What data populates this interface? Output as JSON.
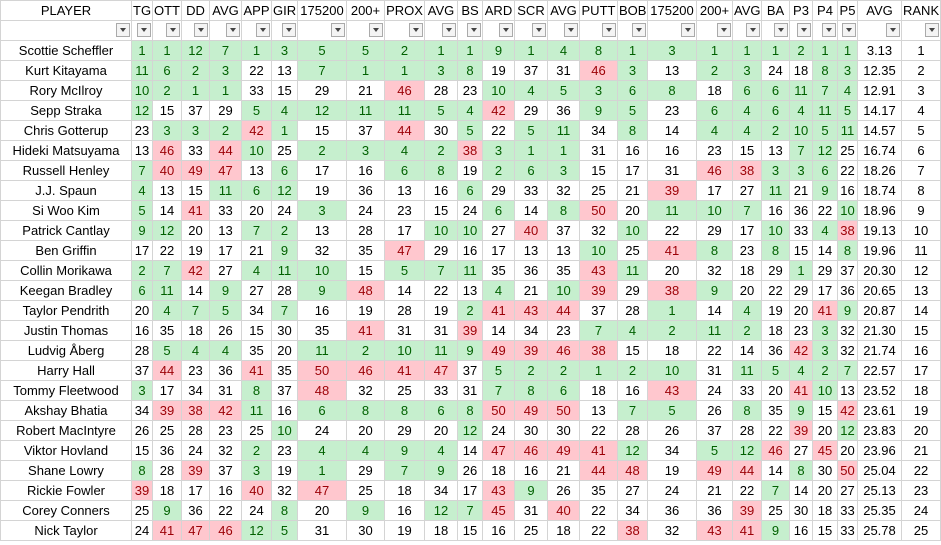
{
  "table": {
    "header": [
      "PLAYER",
      "TG",
      "OTT",
      "DD",
      "AVG",
      "APP",
      "GIR",
      "175200",
      "200+",
      "PROX",
      "AVG",
      "BS",
      "ARD",
      "SCR",
      "AVG",
      "PUTT",
      "BOB",
      "175200",
      "200+",
      "AVG",
      "BA",
      "P3",
      "P4",
      "P5",
      "AVG",
      "RANK"
    ],
    "rows": [
      [
        "Scottie Scheffler",
        1,
        1,
        12,
        7,
        1,
        3,
        5,
        5,
        2,
        1,
        1,
        9,
        1,
        4,
        8,
        1,
        3,
        1,
        1,
        1,
        2,
        1,
        1,
        "3.13",
        1
      ],
      [
        "Kurt Kitayama",
        11,
        6,
        2,
        3,
        22,
        13,
        7,
        1,
        1,
        3,
        8,
        19,
        37,
        31,
        46,
        3,
        13,
        2,
        3,
        24,
        18,
        8,
        3,
        "12.35",
        2
      ],
      [
        "Rory McIlroy",
        10,
        2,
        1,
        1,
        33,
        15,
        29,
        21,
        46,
        28,
        23,
        10,
        4,
        5,
        3,
        6,
        8,
        18,
        6,
        6,
        11,
        7,
        4,
        "12.91",
        3
      ],
      [
        "Sepp Straka",
        12,
        15,
        37,
        29,
        5,
        4,
        12,
        11,
        11,
        5,
        4,
        42,
        29,
        36,
        9,
        5,
        23,
        6,
        4,
        6,
        4,
        11,
        5,
        "14.17",
        4
      ],
      [
        "Chris Gotterup",
        23,
        3,
        3,
        2,
        42,
        1,
        15,
        37,
        44,
        30,
        5,
        22,
        5,
        11,
        34,
        8,
        14,
        4,
        4,
        2,
        10,
        5,
        11,
        "14.57",
        5
      ],
      [
        "Hideki Matsuyama",
        13,
        46,
        33,
        44,
        10,
        25,
        2,
        3,
        4,
        2,
        38,
        3,
        1,
        1,
        31,
        16,
        16,
        23,
        15,
        13,
        7,
        12,
        25,
        "16.74",
        6
      ],
      [
        "Russell Henley",
        7,
        40,
        49,
        47,
        13,
        6,
        17,
        16,
        6,
        8,
        19,
        2,
        6,
        3,
        15,
        17,
        31,
        46,
        38,
        3,
        3,
        6,
        22,
        "18.26",
        7
      ],
      [
        "J.J. Spaun",
        4,
        13,
        15,
        11,
        6,
        12,
        19,
        36,
        13,
        16,
        6,
        29,
        33,
        32,
        25,
        21,
        39,
        17,
        27,
        11,
        21,
        9,
        16,
        "18.74",
        8
      ],
      [
        "Si Woo Kim",
        5,
        14,
        41,
        33,
        20,
        24,
        3,
        24,
        23,
        15,
        24,
        6,
        14,
        8,
        50,
        20,
        11,
        10,
        7,
        16,
        36,
        22,
        10,
        "18.96",
        9
      ],
      [
        "Patrick Cantlay",
        9,
        12,
        20,
        13,
        7,
        2,
        13,
        28,
        17,
        10,
        10,
        27,
        40,
        37,
        32,
        10,
        22,
        29,
        17,
        10,
        33,
        4,
        38,
        "19.13",
        10
      ],
      [
        "Ben Griffin",
        17,
        22,
        19,
        17,
        21,
        9,
        32,
        35,
        47,
        29,
        16,
        17,
        13,
        13,
        10,
        25,
        41,
        8,
        23,
        8,
        15,
        14,
        8,
        "19.96",
        11
      ],
      [
        "Collin Morikawa",
        2,
        7,
        42,
        27,
        4,
        11,
        10,
        15,
        5,
        7,
        11,
        35,
        36,
        35,
        43,
        11,
        20,
        32,
        18,
        29,
        1,
        29,
        37,
        "20.30",
        12
      ],
      [
        "Keegan Bradley",
        6,
        11,
        14,
        9,
        27,
        28,
        9,
        48,
        14,
        22,
        13,
        4,
        21,
        10,
        39,
        29,
        38,
        9,
        20,
        22,
        29,
        17,
        36,
        "20.65",
        13
      ],
      [
        "Taylor Pendrith",
        20,
        4,
        7,
        5,
        34,
        7,
        16,
        19,
        28,
        19,
        2,
        41,
        43,
        44,
        37,
        28,
        1,
        14,
        4,
        19,
        20,
        41,
        9,
        "20.87",
        14
      ],
      [
        "Justin Thomas",
        16,
        35,
        18,
        26,
        15,
        30,
        35,
        41,
        31,
        31,
        39,
        14,
        34,
        23,
        7,
        4,
        2,
        11,
        2,
        18,
        23,
        3,
        32,
        "21.30",
        15
      ],
      [
        "Ludvig Åberg",
        28,
        5,
        4,
        4,
        35,
        20,
        11,
        2,
        10,
        11,
        9,
        49,
        39,
        46,
        38,
        15,
        18,
        22,
        14,
        36,
        42,
        3,
        32,
        "21.74",
        16
      ],
      [
        "Harry Hall",
        37,
        44,
        23,
        36,
        41,
        35,
        50,
        46,
        41,
        47,
        37,
        5,
        2,
        2,
        1,
        2,
        10,
        31,
        11,
        5,
        4,
        2,
        7,
        "22.57",
        17
      ],
      [
        "Tommy Fleetwood",
        3,
        17,
        34,
        31,
        8,
        37,
        48,
        32,
        25,
        33,
        31,
        7,
        8,
        6,
        18,
        16,
        43,
        24,
        33,
        20,
        41,
        10,
        13,
        "23.52",
        18
      ],
      [
        "Akshay Bhatia",
        34,
        39,
        38,
        42,
        11,
        16,
        6,
        8,
        8,
        6,
        8,
        50,
        49,
        50,
        13,
        7,
        5,
        26,
        8,
        35,
        9,
        15,
        42,
        "23.61",
        19
      ],
      [
        "Robert MacIntyre",
        26,
        25,
        28,
        23,
        25,
        10,
        24,
        20,
        29,
        20,
        12,
        24,
        30,
        30,
        22,
        28,
        26,
        37,
        28,
        22,
        39,
        20,
        12,
        "23.83",
        20
      ],
      [
        "Viktor Hovland",
        15,
        36,
        24,
        32,
        2,
        23,
        4,
        4,
        9,
        4,
        14,
        47,
        46,
        49,
        41,
        12,
        34,
        5,
        12,
        46,
        27,
        45,
        20,
        "23.96",
        21
      ],
      [
        "Shane Lowry",
        8,
        28,
        39,
        37,
        3,
        19,
        1,
        29,
        7,
        9,
        26,
        18,
        16,
        21,
        44,
        48,
        19,
        49,
        44,
        14,
        8,
        30,
        50,
        "25.04",
        22
      ],
      [
        "Rickie Fowler",
        39,
        18,
        17,
        16,
        40,
        32,
        47,
        25,
        18,
        34,
        17,
        43,
        9,
        26,
        35,
        27,
        24,
        21,
        22,
        7,
        14,
        20,
        27,
        "25.13",
        23
      ],
      [
        "Corey Conners",
        25,
        9,
        36,
        22,
        24,
        8,
        20,
        9,
        16,
        12,
        7,
        45,
        31,
        40,
        22,
        34,
        36,
        36,
        39,
        25,
        30,
        18,
        33,
        "25.35",
        24
      ],
      [
        "Nick Taylor",
        24,
        41,
        47,
        46,
        12,
        5,
        31,
        30,
        19,
        18,
        15,
        16,
        25,
        18,
        22,
        38,
        32,
        43,
        41,
        9,
        16,
        15,
        33,
        "25.78",
        25
      ]
    ]
  }
}
